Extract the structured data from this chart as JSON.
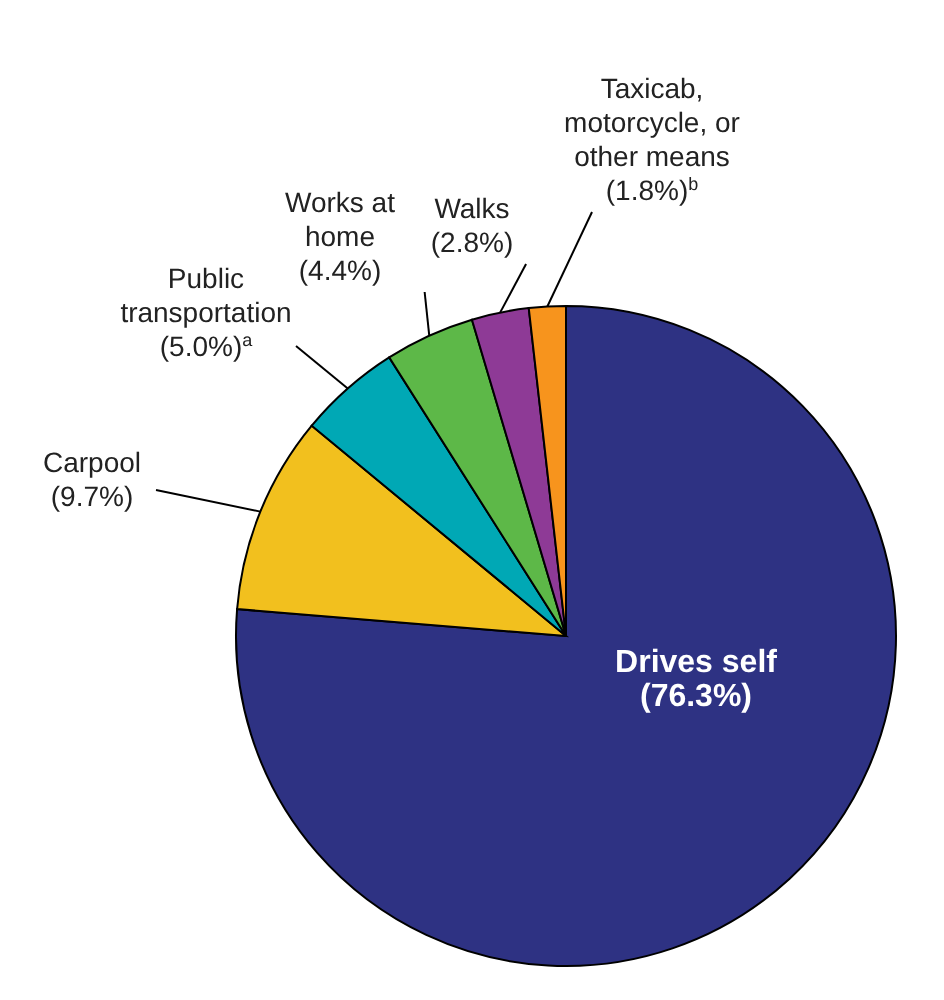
{
  "chart_data": {
    "type": "pie",
    "categories": [
      "Drives self",
      "Carpool",
      "Public transportation",
      "Works at home",
      "Walks",
      "Taxicab, motorcycle, or other means"
    ],
    "values": [
      76.3,
      9.7,
      5.0,
      4.4,
      2.8,
      1.8
    ],
    "colors": [
      "#2e3283",
      "#f2c01e",
      "#00a8b5",
      "#5db848",
      "#8e3a96",
      "#f7941d"
    ],
    "value_labels": [
      "(76.3%)",
      "(9.7%)",
      "(5.0%)$^{a}$",
      "(4.4%)",
      "(2.8%)",
      "(1.8%)$^{b}$"
    ],
    "legend": false
  }
}
